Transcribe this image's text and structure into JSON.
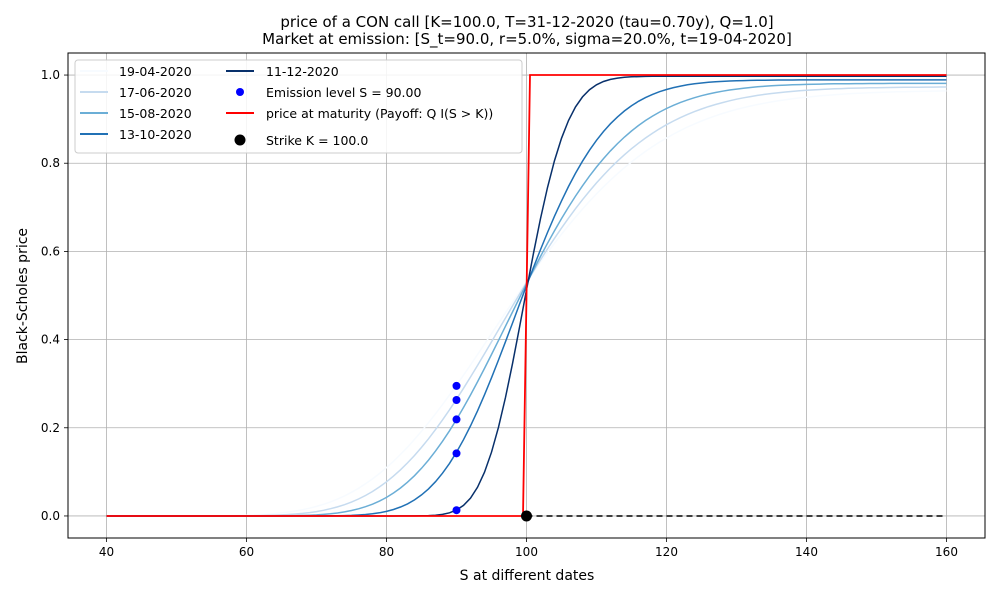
{
  "chart_data": {
    "type": "line",
    "title_line1": "price of a CON call [K=100.0, T=31-12-2020 (tau=0.70y), Q=1.0]",
    "title_line2": "Market at emission: [S_t=90.0, r=5.0%, sigma=20.0%, t=19-04-2020]",
    "xlabel": "S at different dates",
    "ylabel": "Black-Scholes price",
    "xlim": [
      34.5,
      165.5
    ],
    "ylim": [
      -0.05,
      1.05
    ],
    "xticks": [
      40,
      60,
      80,
      100,
      120,
      140,
      160
    ],
    "yticks": [
      0.0,
      0.2,
      0.4,
      0.6,
      0.8,
      1.0
    ],
    "grid": true,
    "legend_position": "top-left",
    "model": {
      "K": 100.0,
      "Q": 1.0,
      "r": 0.05,
      "sigma": 0.2,
      "S_emission": 90.0,
      "x_range": [
        40,
        160
      ],
      "n_points": 121
    },
    "series": [
      {
        "name": "19-04-2020",
        "color": "#f7fbff",
        "tau": 0.7
      },
      {
        "name": "17-06-2020",
        "color": "#c6dbef",
        "tau": 0.54
      },
      {
        "name": "15-08-2020",
        "color": "#6baed6",
        "tau": 0.38
      },
      {
        "name": "13-10-2020",
        "color": "#2171b5",
        "tau": 0.22
      },
      {
        "name": "11-12-2020",
        "color": "#08306b",
        "tau": 0.055
      }
    ],
    "emission_points": {
      "label": "Emission level $S=90.00$",
      "color": "#0000ff",
      "x": 90,
      "values": [
        0.295,
        0.263,
        0.219,
        0.142,
        0.013
      ]
    },
    "payoff": {
      "label": "price at maturity (Payoff: $Q\\ I(S>K)$)",
      "color": "#ff0000",
      "values": [
        [
          40,
          0
        ],
        [
          99.5,
          0
        ],
        [
          100.5,
          1
        ],
        [
          160,
          1
        ]
      ]
    },
    "strike": {
      "label": "Strike $K=100.0$",
      "color": "#000000",
      "x": 100,
      "y": 0
    },
    "zero_line": {
      "color": "#000000",
      "x_from": 100,
      "x_to": 160,
      "y": 0
    }
  },
  "legend": {
    "col1": [
      "19-04-2020",
      "17-06-2020",
      "15-08-2020",
      "13-10-2020"
    ],
    "col2": [
      "11-12-2020",
      "Emission level S = 90.00",
      "price at maturity (Payoff: Q I(S > K))",
      "Strike K = 100.0"
    ]
  }
}
